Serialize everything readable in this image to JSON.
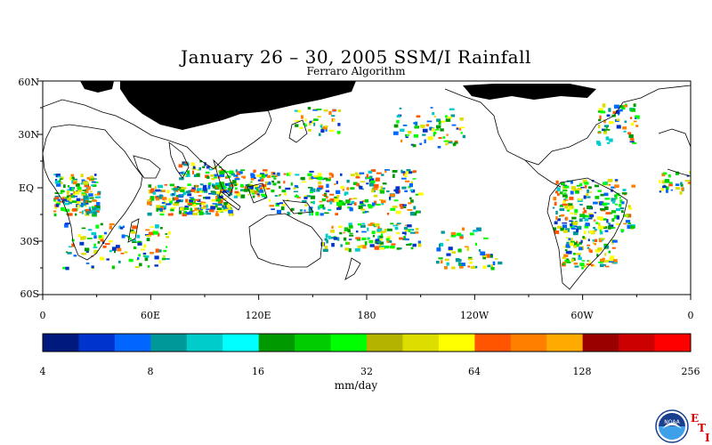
{
  "title": "January 26 – 30, 2005 SSM/I Rainfall",
  "subtitle": "Ferraro Algorithm",
  "lat_labels": [
    "60N",
    "30N",
    "EQ",
    "30S",
    "60S"
  ],
  "lon_labels": [
    "0",
    "60E",
    "120E",
    "180",
    "120W",
    "60W",
    "0"
  ],
  "colorbar": {
    "colors": [
      "#00197f",
      "#0033cc",
      "#0066ff",
      "#009999",
      "#00cccc",
      "#00ffff",
      "#009900",
      "#00cc00",
      "#00ff00",
      "#b3b300",
      "#dddd00",
      "#ffff00",
      "#ff5500",
      "#ff8000",
      "#ffaa00",
      "#990000",
      "#cc0000",
      "#ff0000"
    ],
    "ticks": [
      "4",
      "8",
      "16",
      "32",
      "64",
      "128",
      "256"
    ],
    "units": "mm/day"
  },
  "logo": {
    "icon": "noaa-logo",
    "text": "NOAA"
  },
  "eti": {
    "e": "E",
    "t": "T",
    "i": "I"
  }
}
